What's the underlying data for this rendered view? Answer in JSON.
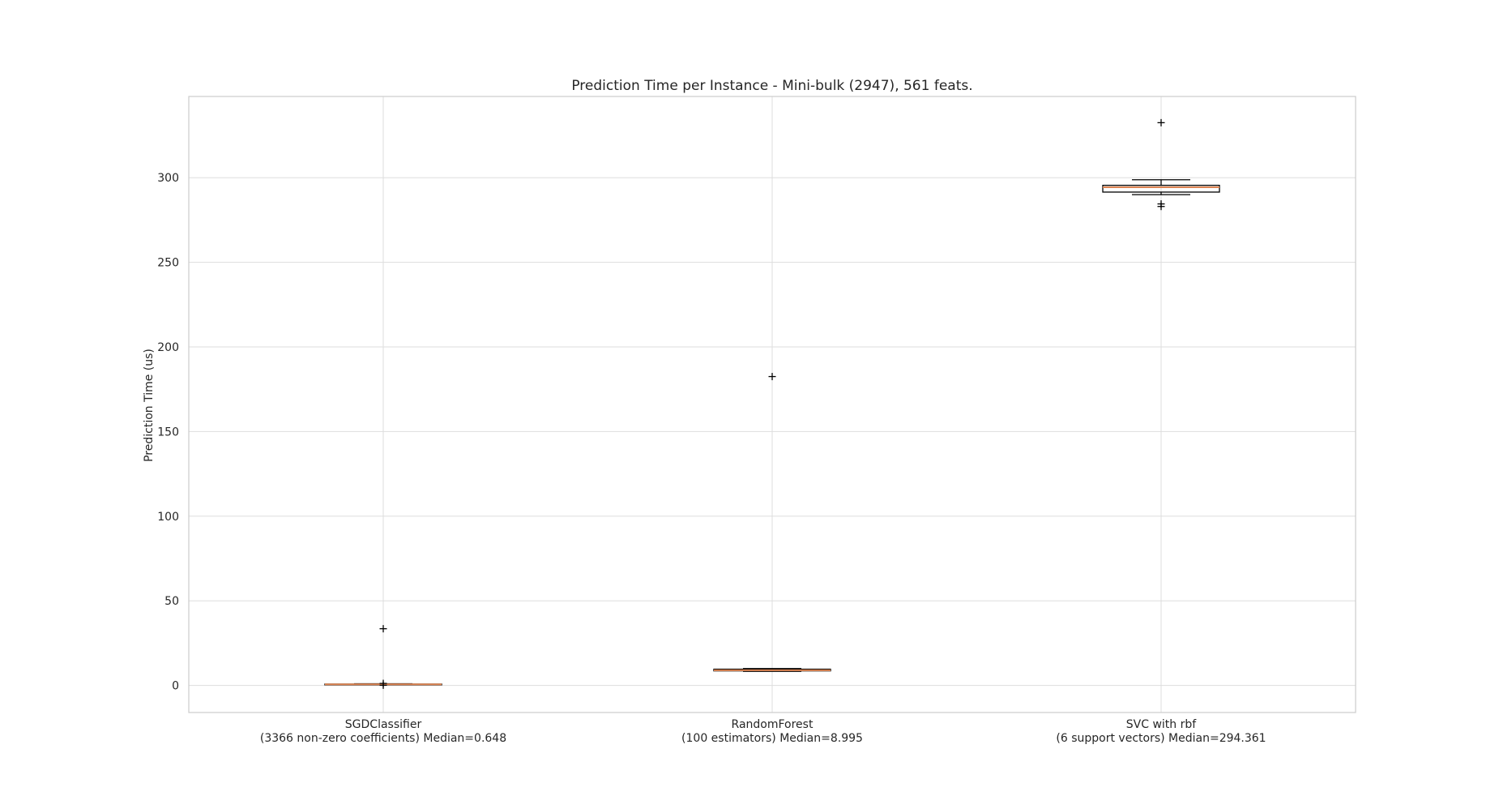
{
  "chart_data": {
    "type": "box",
    "title": "Prediction Time per Instance - Mini-bulk (2947), 561 feats.",
    "xlabel": "",
    "ylabel": "Prediction Time (us)",
    "ylim": [
      -16,
      348
    ],
    "yticks": [
      0,
      50,
      100,
      150,
      200,
      250,
      300
    ],
    "grid": true,
    "legend": "none",
    "colors": {
      "box_edge": "#000000",
      "median": "#dd8452",
      "grid": "#dddddd",
      "spine": "#cccccc",
      "text": "#262626"
    },
    "categories": [
      [
        "SGDClassifier",
        "(3366 non-zero coefficients) Median=0.648"
      ],
      [
        "RandomForest",
        "(100 estimators) Median=8.995"
      ],
      [
        "SVC with rbf",
        "(6 support vectors) Median=294.361"
      ]
    ],
    "boxes": [
      {
        "name": "SGDClassifier",
        "q1": 0.55,
        "median": 0.648,
        "q3": 0.8,
        "whisker_low": 0.45,
        "whisker_high": 1.0,
        "outliers": [
          33.5,
          1.2,
          0.1
        ]
      },
      {
        "name": "RandomForest",
        "q1": 8.6,
        "median": 8.995,
        "q3": 9.6,
        "whisker_low": 8.3,
        "whisker_high": 10.0,
        "outliers": [
          182.5
        ]
      },
      {
        "name": "SVC with rbf",
        "q1": 291.5,
        "median": 294.361,
        "q3": 295.5,
        "whisker_low": 290.0,
        "whisker_high": 298.8,
        "outliers": [
          332.5,
          284.5,
          283.0
        ]
      }
    ]
  }
}
